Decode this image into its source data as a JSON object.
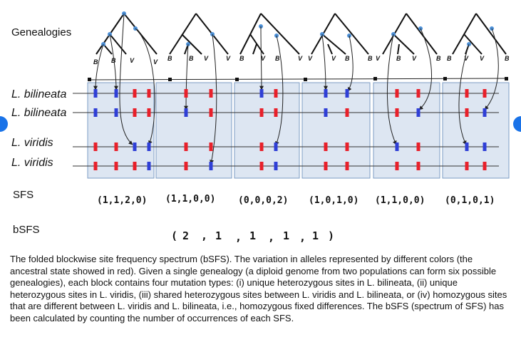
{
  "labels": {
    "genealogies": "Genealogies",
    "sfs": "SFS",
    "bsfs": "bSFS"
  },
  "species": [
    "L. bilineata",
    "L. bilineata",
    "L. viridis",
    "L. viridis"
  ],
  "tree_leaves": [
    [
      "B",
      "B",
      "V",
      "V"
    ],
    [
      "B",
      "B",
      "V",
      "V"
    ],
    [
      "B",
      "V",
      "B",
      "V"
    ],
    [
      "V",
      "V",
      "B",
      "B"
    ],
    [
      "V",
      "B",
      "V",
      "B"
    ],
    [
      "B",
      "V",
      "V",
      "B"
    ]
  ],
  "sfs_values": [
    "(1,1,2,0)",
    "(1,1,0,0)",
    "(0,0,0,2)",
    "(1,0,1,0)",
    "(1,1,0,0)",
    "(0,1,0,1)"
  ],
  "bsfs_parts": [
    "(",
    "2",
    ",",
    "1",
    ",",
    "1",
    ",",
    "1",
    ",",
    "1",
    ")"
  ],
  "caption": "The folded blockwise site frequency spectrum (bSFS). The variation in alleles represented by different colors (the ancestral state showed in red). Given a single genealogy (a diploid genome from two populations can form six possible genealogies), each block contains four mutation types: (i) unique heterozygous sites in L. bilineata, (ii) unique heterozygous sites in L. viridis, (iii) shared heterozygous sites between L. viridis and L. bilineata, or (iv) homozygous sites that are different between L. viridis and L. bilineata, i.e., homozygous fixed differences. The bSFS (spectrum of SFS) has been calculated by counting the number of occurrences of each SFS.",
  "colors": {
    "ancestral": "#e8202a",
    "derived": "#2f3fd6",
    "block_fill": "#dde6f2",
    "block_border": "#7c9cc4",
    "node": "#4b8fd6",
    "nav": "#1a73e8"
  },
  "sites": [
    [
      [
        "B",
        "B",
        "R",
        "R"
      ],
      [
        "B",
        "B",
        "R",
        "R"
      ],
      [
        "R",
        "R",
        "B",
        "B"
      ],
      [
        "R",
        "R",
        "R",
        "B"
      ]
    ],
    [
      [
        "R",
        "R"
      ],
      [
        "B",
        "R"
      ],
      [
        "R",
        "R"
      ],
      [
        "R",
        "B"
      ]
    ],
    [
      [
        "B",
        "R"
      ],
      [
        "R",
        "R"
      ],
      [
        "R",
        "B"
      ],
      [
        "R",
        "B"
      ]
    ],
    [
      [
        "B",
        "B"
      ],
      [
        "B",
        "R"
      ],
      [
        "R",
        "R"
      ],
      [
        "R",
        "R"
      ]
    ],
    [
      [
        "R",
        "R"
      ],
      [
        "R",
        "B"
      ],
      [
        "B",
        "R"
      ],
      [
        "R",
        "R"
      ]
    ],
    [
      [
        "R",
        "R"
      ],
      [
        "R",
        "B"
      ],
      [
        "B",
        "B"
      ],
      [
        "R",
        "R"
      ]
    ]
  ]
}
